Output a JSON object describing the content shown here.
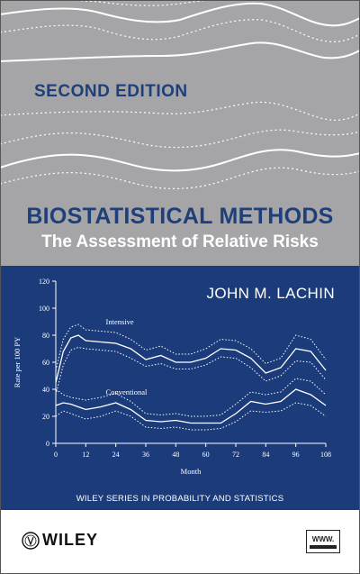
{
  "cover": {
    "edition": "SECOND EDITION",
    "title": "BIOSTATISTICAL METHODS",
    "subtitle": "The Assessment of Relative Risks",
    "author": "JOHN M. LACHIN",
    "series": "WILEY SERIES IN PROBABILITY AND STATISTICS",
    "publisher": "WILEY",
    "www_badge": "WWW.",
    "colors": {
      "top_panel": "#a5a5a7",
      "bottom_panel": "#1b3b7a",
      "title_blue": "#1e3f7a",
      "curves": "#ffffff"
    }
  },
  "chart_data": {
    "type": "line",
    "xlabel": "Month",
    "ylabel": "Rate per 100 PY",
    "xlim": [
      0,
      108
    ],
    "ylim": [
      0,
      120
    ],
    "xticks": [
      0,
      12,
      24,
      36,
      48,
      60,
      72,
      84,
      96,
      108
    ],
    "yticks": [
      0,
      20,
      40,
      60,
      80,
      100,
      120
    ],
    "grid": false,
    "annotations": [
      "Intensive",
      "Conventional"
    ],
    "x": [
      0,
      3,
      6,
      9,
      12,
      18,
      24,
      30,
      36,
      42,
      48,
      54,
      60,
      66,
      72,
      78,
      84,
      90,
      96,
      102,
      108
    ],
    "series": [
      {
        "values": [
          45,
          68,
          78,
          80,
          76,
          75,
          74,
          70,
          62,
          65,
          60,
          60,
          63,
          70,
          69,
          63,
          52,
          56,
          70,
          68,
          54
        ],
        "lower": [
          36,
          58,
          69,
          71,
          70,
          69,
          68,
          63,
          57,
          59,
          55,
          55,
          58,
          64,
          63,
          56,
          46,
          50,
          61,
          60,
          47
        ],
        "upper": [
          54,
          77,
          86,
          88,
          84,
          83,
          82,
          77,
          69,
          72,
          66,
          66,
          70,
          77,
          76,
          70,
          59,
          63,
          80,
          77,
          62
        ]
      },
      {
        "values": [
          28,
          30,
          29,
          27,
          25,
          27,
          30,
          25,
          17,
          16,
          17,
          15,
          15,
          15,
          22,
          31,
          29,
          31,
          40,
          36,
          28
        ],
        "lower": [
          20,
          24,
          22,
          20,
          18,
          20,
          24,
          20,
          12,
          11,
          12,
          10,
          10,
          11,
          16,
          24,
          23,
          24,
          30,
          28,
          20
        ],
        "upper": [
          40,
          36,
          34,
          33,
          32,
          34,
          37,
          31,
          22,
          21,
          22,
          20,
          20,
          21,
          29,
          38,
          36,
          38,
          48,
          46,
          36
        ]
      }
    ]
  }
}
